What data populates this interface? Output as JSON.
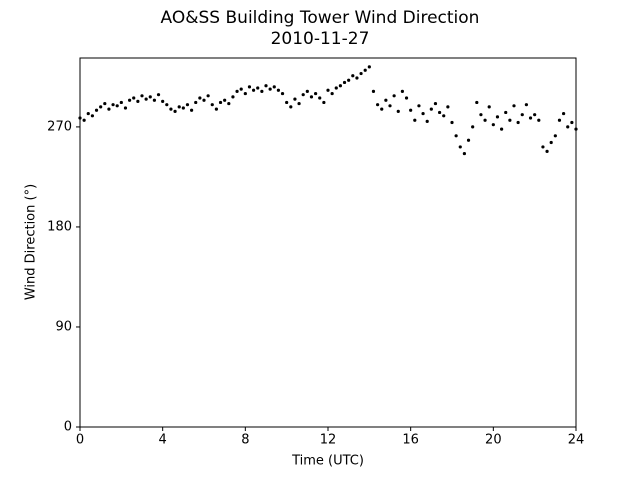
{
  "chart_data": {
    "type": "scatter",
    "title": "AO&SS Building Tower Wind Direction",
    "subtitle": "2010-11-27",
    "x_label": "Time (UTC)",
    "y_label": "Wind Direction (°)",
    "color": "#000000",
    "xlim": [
      0,
      24
    ],
    "xticks": [
      0,
      4,
      8,
      12,
      16,
      20,
      24
    ],
    "ylim": [
      0,
      332
    ],
    "yticks": [
      0,
      90,
      180,
      270
    ],
    "x": [
      0,
      0.2,
      0.4,
      0.6,
      0.8,
      1,
      1.2,
      1.4,
      1.6,
      1.8,
      2,
      2.2,
      2.4,
      2.6,
      2.8,
      3,
      3.2,
      3.4,
      3.6,
      3.8,
      4,
      4.2,
      4.4,
      4.6,
      4.8,
      5,
      5.2,
      5.4,
      5.6,
      5.8,
      6,
      6.2,
      6.4,
      6.6,
      6.8,
      7,
      7.2,
      7.4,
      7.6,
      7.8,
      8,
      8.2,
      8.4,
      8.6,
      8.8,
      9,
      9.2,
      9.4,
      9.6,
      9.8,
      10,
      10.2,
      10.4,
      10.6,
      10.8,
      11,
      11.2,
      11.4,
      11.6,
      11.8,
      12,
      12.2,
      12.4,
      12.6,
      12.8,
      13,
      13.2,
      13.4,
      13.6,
      13.8,
      14,
      14.2,
      14.4,
      14.6,
      14.8,
      15,
      15.2,
      15.4,
      15.6,
      15.8,
      16,
      16.2,
      16.4,
      16.6,
      16.8,
      17,
      17.2,
      17.4,
      17.6,
      17.8,
      18,
      18.2,
      18.4,
      18.6,
      18.8,
      19,
      19.2,
      19.4,
      19.6,
      19.8,
      20,
      20.2,
      20.4,
      20.6,
      20.8,
      21,
      21.2,
      21.4,
      21.6,
      21.8,
      22,
      22.2,
      22.4,
      22.6,
      22.8,
      23,
      23.2,
      23.4,
      23.6,
      23.8,
      24
    ],
    "values": [
      278,
      276,
      282,
      280,
      285,
      288,
      291,
      286,
      290,
      289,
      292,
      287,
      294,
      296,
      293,
      298,
      295,
      297,
      294,
      299,
      293,
      290,
      286,
      284,
      288,
      287,
      290,
      285,
      292,
      296,
      294,
      298,
      290,
      286,
      292,
      294,
      291,
      297,
      302,
      304,
      300,
      306,
      303,
      305,
      302,
      307,
      304,
      306,
      303,
      300,
      292,
      288,
      295,
      291,
      299,
      302,
      297,
      300,
      296,
      292,
      303,
      300,
      305,
      307,
      310,
      312,
      316,
      314,
      318,
      321,
      324,
      302,
      290,
      286,
      294,
      289,
      298,
      284,
      302,
      296,
      285,
      276,
      289,
      282,
      275,
      286,
      291,
      283,
      280,
      288,
      274,
      262,
      252,
      246,
      258,
      270,
      292,
      281,
      276,
      288,
      272,
      279,
      268,
      283,
      276,
      289,
      274,
      281,
      290,
      278,
      281,
      276,
      252,
      248,
      256,
      262,
      276,
      282,
      270,
      274,
      268
    ]
  }
}
